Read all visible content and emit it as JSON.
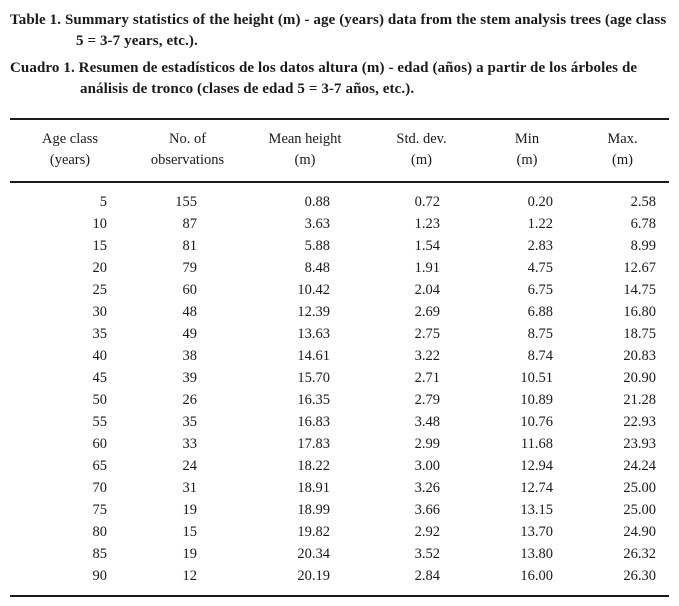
{
  "captions": {
    "english": "Table 1. Summary statistics of the height (m) - age (years) data from the stem analysis trees (age class 5 = 3-7 years, etc.).",
    "spanish": "Cuadro 1. Resumen de estadísticos de los datos altura (m) - edad (años) a partir de los árboles de análisis de tronco (clases de edad 5 = 3-7 años, etc.)."
  },
  "table": {
    "columns": [
      {
        "line1": "Age class",
        "line2": "(years)"
      },
      {
        "line1": "No. of",
        "line2": "observations"
      },
      {
        "line1": "Mean height",
        "line2": "(m)"
      },
      {
        "line1": "Std. dev.",
        "line2": "(m)"
      },
      {
        "line1": "Min",
        "line2": "(m)"
      },
      {
        "line1": "Max.",
        "line2": "(m)"
      }
    ],
    "rows": [
      [
        "5",
        "155",
        "0.88",
        "0.72",
        "0.20",
        "2.58"
      ],
      [
        "10",
        "87",
        "3.63",
        "1.23",
        "1.22",
        "6.78"
      ],
      [
        "15",
        "81",
        "5.88",
        "1.54",
        "2.83",
        "8.99"
      ],
      [
        "20",
        "79",
        "8.48",
        "1.91",
        "4.75",
        "12.67"
      ],
      [
        "25",
        "60",
        "10.42",
        "2.04",
        "6.75",
        "14.75"
      ],
      [
        "30",
        "48",
        "12.39",
        "2.69",
        "6.88",
        "16.80"
      ],
      [
        "35",
        "49",
        "13.63",
        "2.75",
        "8.75",
        "18.75"
      ],
      [
        "40",
        "38",
        "14.61",
        "3.22",
        "8.74",
        "20.83"
      ],
      [
        "45",
        "39",
        "15.70",
        "2.71",
        "10.51",
        "20.90"
      ],
      [
        "50",
        "26",
        "16.35",
        "2.79",
        "10.89",
        "21.28"
      ],
      [
        "55",
        "35",
        "16.83",
        "3.48",
        "10.76",
        "22.93"
      ],
      [
        "60",
        "33",
        "17.83",
        "2.99",
        "11.68",
        "23.93"
      ],
      [
        "65",
        "24",
        "18.22",
        "3.00",
        "12.94",
        "24.24"
      ],
      [
        "70",
        "31",
        "18.91",
        "3.26",
        "12.74",
        "25.00"
      ],
      [
        "75",
        "19",
        "18.99",
        "3.66",
        "13.15",
        "25.00"
      ],
      [
        "80",
        "15",
        "19.82",
        "2.92",
        "13.70",
        "24.90"
      ],
      [
        "85",
        "19",
        "20.34",
        "3.52",
        "13.80",
        "26.32"
      ],
      [
        "90",
        "12",
        "20.19",
        "2.84",
        "16.00",
        "26.30"
      ]
    ]
  }
}
